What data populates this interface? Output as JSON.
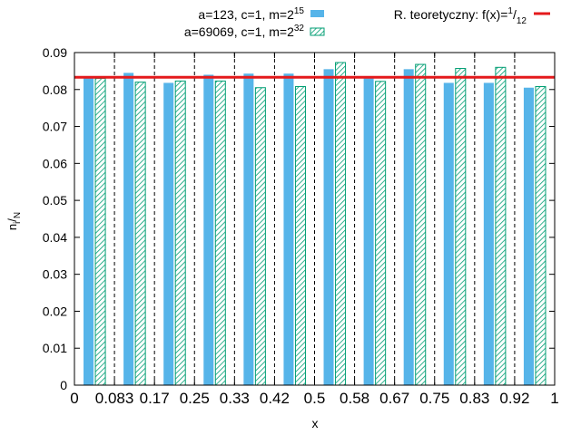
{
  "chart_data": {
    "type": "bar",
    "title": "",
    "xlabel": "x",
    "ylabel": {
      "base": "n",
      "sub1": "i",
      "sep": "/",
      "sub2": "N"
    },
    "xlim": [
      0,
      1
    ],
    "ylim": [
      0,
      0.09
    ],
    "yticks": [
      "0",
      "0.01",
      "0.02",
      "0.03",
      "0.04",
      "0.05",
      "0.06",
      "0.07",
      "0.08",
      "0.09"
    ],
    "xticks": [
      "0",
      "0.083",
      "0.17",
      "0.25",
      "0.33",
      "0.42",
      "0.5",
      "0.58",
      "0.67",
      "0.75",
      "0.83",
      "0.92",
      "1"
    ],
    "bins": 12,
    "legend_placement": "top",
    "series": [
      {
        "name": {
          "text": "a=123, c=1, m=2",
          "sup": "15"
        },
        "style": "solid",
        "color": "#56b4e9",
        "values": [
          0.0833,
          0.0845,
          0.0818,
          0.084,
          0.0843,
          0.0843,
          0.0855,
          0.083,
          0.0855,
          0.0818,
          0.0818,
          0.0805
        ]
      },
      {
        "name": {
          "text": "a=69069, c=1, m=2",
          "sup": "32"
        },
        "style": "hatched",
        "color": "#009e73",
        "values": [
          0.083,
          0.082,
          0.0823,
          0.0823,
          0.0805,
          0.0808,
          0.0873,
          0.0822,
          0.0868,
          0.0857,
          0.086,
          0.0808
        ]
      }
    ],
    "reference_line": {
      "name": {
        "text": "R. teoretyczny: f(x)=",
        "num": "1",
        "sep": "/",
        "den": "12"
      },
      "value": 0.08333,
      "color": "#e41a1c"
    },
    "divider_style": "dashed"
  }
}
